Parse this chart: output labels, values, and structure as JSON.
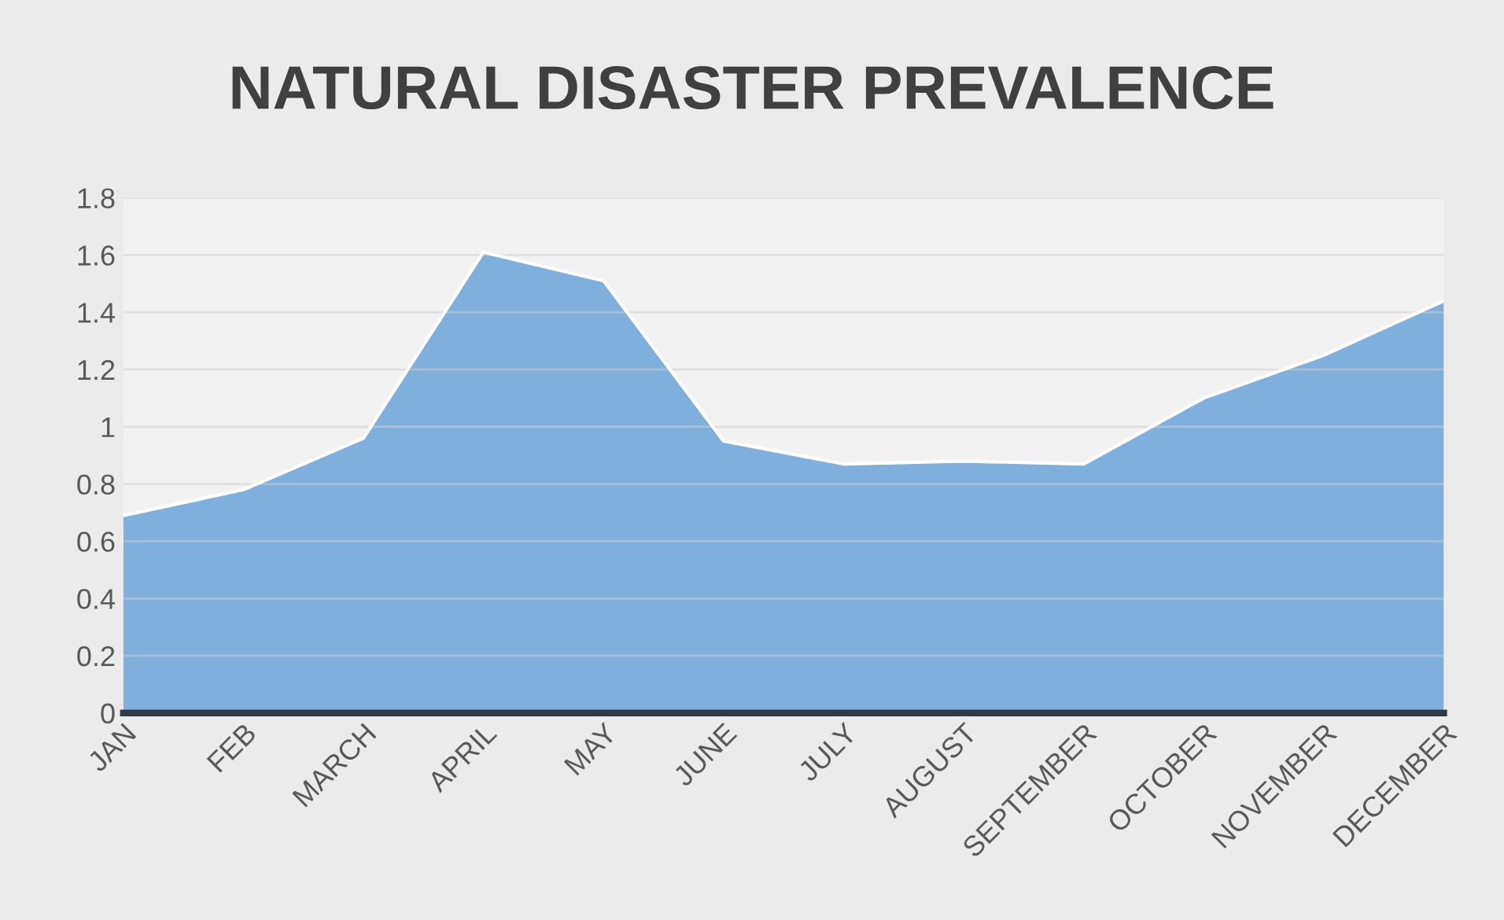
{
  "chart_data": {
    "type": "area",
    "title": "NATURAL DISASTER PREVALENCE",
    "categories": [
      "JAN",
      "FEB",
      "MARCH",
      "APRIL",
      "MAY",
      "JUNE",
      "JULY",
      "AUGUST",
      "SEPTEMBER",
      "OCTOBER",
      "NOVEMBER",
      "DECEMBER"
    ],
    "series": [
      {
        "color": "#7fafdc",
        "values": [
          0.69,
          0.78,
          0.96,
          1.61,
          1.51,
          0.95,
          0.87,
          0.88,
          0.87,
          1.1,
          1.25,
          1.44
        ]
      }
    ],
    "ylim": [
      0,
      1.8
    ],
    "yticks": [
      0,
      0.2,
      0.4,
      0.6,
      0.8,
      1,
      1.2,
      1.4,
      1.6,
      1.8
    ],
    "grid": "y"
  }
}
